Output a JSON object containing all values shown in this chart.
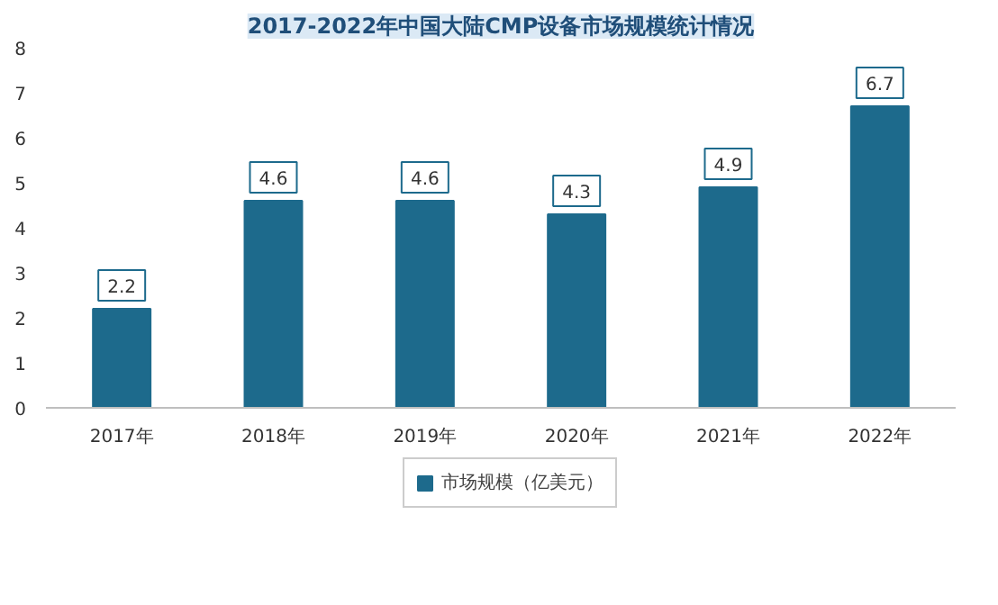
{
  "chart_data": {
    "type": "bar",
    "title": "2017-2022年中国大陆CMP设备市场规模统计情况",
    "categories": [
      "2017年",
      "2018年",
      "2019年",
      "2020年",
      "2021年",
      "2022年"
    ],
    "series": [
      {
        "name": "市场规模（亿美元）",
        "color": "#1d6a8c",
        "values": [
          2.2,
          4.6,
          4.6,
          4.3,
          4.9,
          6.7
        ]
      }
    ],
    "ylim": [
      0,
      8
    ],
    "yticks": [
      0,
      1,
      2,
      3,
      4,
      5,
      6,
      7,
      8
    ],
    "grid": false,
    "legend": "bottom",
    "data_labels": true
  }
}
